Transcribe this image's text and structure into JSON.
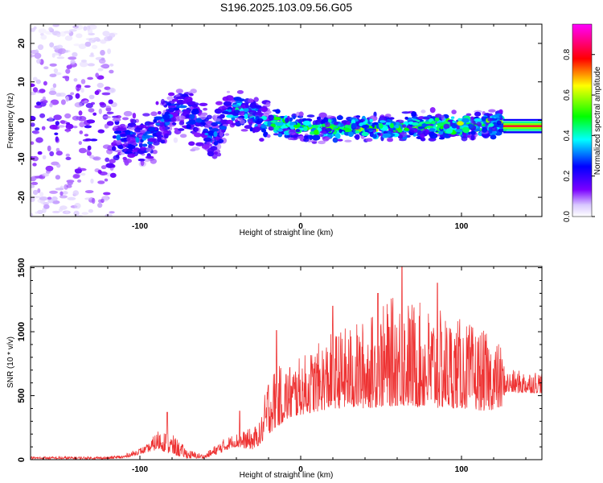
{
  "page": {
    "title": "S196.2025.103.09.56.G05"
  },
  "chart_data": [
    {
      "type": "heatmap",
      "subtype": "spectrogram",
      "title": "S196.2025.103.09.56.G05",
      "xlabel": "Height of straight line (km)",
      "ylabel": "Frequency (Hz)",
      "xlim": [
        -168,
        150
      ],
      "ylim": [
        -25,
        25
      ],
      "x_ticks": [
        -100,
        0,
        100
      ],
      "x_tick_labels": [
        "-100",
        "0",
        "100"
      ],
      "y_ticks": [
        -20,
        -10,
        0,
        10,
        20
      ],
      "y_tick_labels": [
        "-20",
        "-10",
        "0",
        "10",
        "20"
      ],
      "colorbar": {
        "label": "Normalized spectral amplitude",
        "range": [
          0,
          0.95
        ],
        "ticks": [
          0.0,
          0.2,
          0.4,
          0.6,
          0.8
        ],
        "tick_labels": [
          "0.0",
          "0.2",
          "0.4",
          "0.6",
          "0.8"
        ],
        "colors": [
          "#ffffff",
          "#7a00ff",
          "#0000ff",
          "#00ffff",
          "#00ff00",
          "#ffff00",
          "#ff0000",
          "#ff00ff"
        ]
      },
      "ridge_center_frequency": [
        {
          "x": -168,
          "f": 0
        },
        {
          "x": -110,
          "f": -5
        },
        {
          "x": -95,
          "f": -5
        },
        {
          "x": -85,
          "f": 0
        },
        {
          "x": -75,
          "f": 3
        },
        {
          "x": -65,
          "f": 0
        },
        {
          "x": -55,
          "f": -5
        },
        {
          "x": -45,
          "f": 2
        },
        {
          "x": -38,
          "f": 3
        },
        {
          "x": -25,
          "f": 0
        },
        {
          "x": 0,
          "f": -2
        },
        {
          "x": 50,
          "f": -2
        },
        {
          "x": 125,
          "f": -1
        },
        {
          "x": 150,
          "f": -1
        }
      ],
      "bright_band": {
        "x_start": 126,
        "x_end": 150,
        "f": -1.5
      }
    },
    {
      "type": "line",
      "xlabel": "Height of straight line (km)",
      "ylabel": "SNR (10 * v/v)",
      "xlim": [
        -168,
        150
      ],
      "ylim": [
        0,
        1510
      ],
      "x_ticks": [
        -100,
        0,
        100
      ],
      "x_tick_labels": [
        "-100",
        "0",
        "100"
      ],
      "y_ticks": [
        0,
        500,
        1000,
        1500
      ],
      "y_tick_labels": [
        "0",
        "500",
        "1000",
        "1500"
      ],
      "color": "#ee3333",
      "envelope": {
        "x": [
          -168,
          -120,
          -110,
          -95,
          -88,
          -80,
          -70,
          -60,
          -50,
          -42,
          -30,
          -25,
          -20,
          -10,
          0,
          20,
          40,
          60,
          80,
          100,
          115,
          125,
          127,
          150
        ],
        "low": [
          5,
          5,
          10,
          60,
          80,
          40,
          10,
          10,
          50,
          100,
          80,
          120,
          200,
          300,
          350,
          400,
          400,
          420,
          400,
          400,
          380,
          400,
          520,
          520
        ],
        "high": [
          25,
          25,
          40,
          120,
          250,
          200,
          80,
          40,
          150,
          200,
          250,
          300,
          700,
          750,
          800,
          1000,
          1100,
          1300,
          1200,
          1100,
          1000,
          900,
          700,
          700
        ]
      },
      "peaks": [
        {
          "x": -83,
          "y": 370
        },
        {
          "x": -38,
          "y": 380
        },
        {
          "x": -15,
          "y": 1010
        },
        {
          "x": 20,
          "y": 1200
        },
        {
          "x": 48,
          "y": 1300
        },
        {
          "x": 63,
          "y": 1510
        },
        {
          "x": 85,
          "y": 1380
        }
      ]
    }
  ]
}
